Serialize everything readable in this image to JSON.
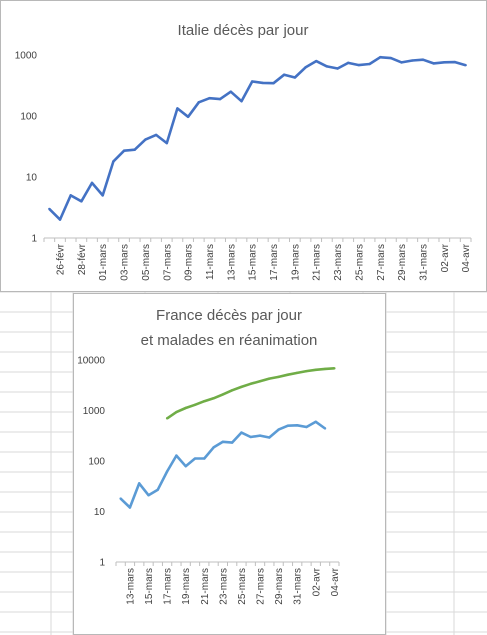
{
  "chart_data": [
    {
      "type": "line",
      "title": "Italie décès par jour",
      "yscale": "log",
      "ylim": [
        1,
        1000
      ],
      "ytick_labels": [
        "1",
        "10",
        "100",
        "1000"
      ],
      "x_tick_labels": [
        "26-févr",
        "28-févr",
        "01-mars",
        "03-mars",
        "05-mars",
        "07-mars",
        "09-mars",
        "11-mars",
        "13-mars",
        "15-mars",
        "17-mars",
        "19-mars",
        "21-mars",
        "23-mars",
        "25-mars",
        "27-mars",
        "29-mars",
        "31-mars",
        "02-avr",
        "04-avr"
      ],
      "x": [
        "25-févr",
        "26-févr",
        "27-févr",
        "28-févr",
        "29-févr",
        "01-mars",
        "02-mars",
        "03-mars",
        "04-mars",
        "05-mars",
        "06-mars",
        "07-mars",
        "08-mars",
        "09-mars",
        "10-mars",
        "11-mars",
        "12-mars",
        "13-mars",
        "14-mars",
        "15-mars",
        "16-mars",
        "17-mars",
        "18-mars",
        "19-mars",
        "20-mars",
        "21-mars",
        "22-mars",
        "23-mars",
        "24-mars",
        "25-mars",
        "26-mars",
        "27-mars",
        "28-mars",
        "29-mars",
        "30-mars",
        "31-mars",
        "01-avr",
        "02-avr",
        "03-avr",
        "04-avr"
      ],
      "series": [
        {
          "color": "#4472c4",
          "values": [
            3,
            2,
            5,
            4,
            8,
            5,
            18,
            27,
            28,
            41,
            49,
            36,
            133,
            97,
            168,
            196,
            189,
            250,
            175,
            368,
            349,
            345,
            475,
            427,
            627,
            793,
            651,
            601,
            743,
            683,
            712,
            919,
            889,
            756,
            812,
            837,
            727,
            760,
            766,
            681
          ]
        }
      ],
      "grid": false
    },
    {
      "type": "line",
      "title": "France décès par jour",
      "subtitle": "et malades en réanimation",
      "yscale": "log",
      "ylim": [
        1,
        10000
      ],
      "ytick_labels": [
        "1",
        "10",
        "100",
        "1000",
        "10000"
      ],
      "x_tick_labels": [
        "13-mars",
        "15-mars",
        "17-mars",
        "19-mars",
        "21-mars",
        "23-mars",
        "25-mars",
        "27-mars",
        "29-mars",
        "31-mars",
        "02-avr",
        "04-avr"
      ],
      "x": [
        "12-mars",
        "13-mars",
        "14-mars",
        "15-mars",
        "16-mars",
        "17-mars",
        "18-mars",
        "19-mars",
        "20-mars",
        "21-mars",
        "22-mars",
        "23-mars",
        "24-mars",
        "25-mars",
        "26-mars",
        "27-mars",
        "28-mars",
        "29-mars",
        "30-mars",
        "31-mars",
        "01-avr",
        "02-avr",
        "03-avr",
        "04-avr"
      ],
      "series": [
        {
          "color": "#5b9bd5",
          "values": [
            18,
            12,
            36,
            21,
            27,
            62,
            128,
            79,
            112,
            112,
            186,
            240,
            231,
            365,
            299,
            319,
            292,
            418,
            499,
            509,
            471,
            598,
            441,
            null
          ]
        },
        {
          "color": "#70ad47",
          "values": [
            null,
            null,
            null,
            null,
            null,
            699,
            931,
            1122,
            1297,
            1525,
            1746,
            2082,
            2516,
            2931,
            3375,
            3787,
            4273,
            4632,
            5107,
            5565,
            6017,
            6399,
            6662,
            6838
          ]
        }
      ],
      "grid": false
    }
  ]
}
